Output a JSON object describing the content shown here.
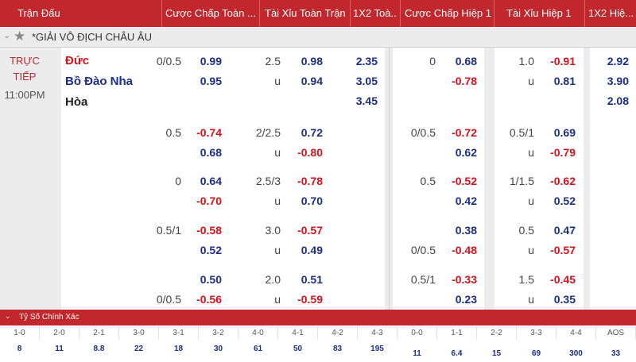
{
  "header": {
    "match": "Trận Đấu",
    "hcap_ft": "Cược Chấp Toàn ...",
    "ou_ft": "Tài Xỉu Toàn Trận",
    "x12_ft": "1X2 Toà...",
    "hcap_h1": "Cược Chấp Hiệp 1",
    "ou_h1": "Tài Xỉu Hiệp 1",
    "x12_h1": "1X2 Hiệ..."
  },
  "league": {
    "name": "*GIẢI VÔ ĐỊCH CHÂU ÂU",
    "star_icon": "star-icon"
  },
  "match": {
    "status_line1": "TRỰC",
    "status_line2": "TIẾP",
    "time": "11:00PM",
    "home": "Đức",
    "away": "Bồ Đào Nha",
    "draw": "Hòa"
  },
  "main_line": {
    "hcap_ft": {
      "line": "0/0.5",
      "home": "0.99",
      "away": "0.95"
    },
    "ou_ft": {
      "line": "2.5",
      "over": "0.98",
      "u_label": "u",
      "under": "0.94"
    },
    "x12_ft": {
      "home": "2.35",
      "away": "3.05",
      "draw": "3.45"
    },
    "hcap_h1": {
      "line": "0",
      "home": "0.68",
      "away": "-0.78"
    },
    "ou_h1": {
      "line": "1.0",
      "over": "-0.91",
      "u_label": "u",
      "under": "0.81"
    },
    "x12_h1": {
      "home": "2.92",
      "away": "3.90",
      "draw": "2.08"
    }
  },
  "alt_lines": [
    {
      "hcap_ft_line_top": "0.5",
      "hcap_ft_line_bot": "",
      "hcap_ft_top": "-0.74",
      "hcap_ft_bot": "0.68",
      "ou_ft_line": "2/2.5",
      "ou_ft_top": "0.72",
      "ou_ft_bot": "-0.80",
      "hcap_h1_line_top": "0/0.5",
      "hcap_h1_line_bot": "",
      "hcap_h1_top": "-0.72",
      "hcap_h1_bot": "0.62",
      "ou_h1_line": "0.5/1",
      "ou_h1_top": "0.69",
      "ou_h1_bot": "-0.79"
    },
    {
      "hcap_ft_line_top": "0",
      "hcap_ft_line_bot": "",
      "hcap_ft_top": "0.64",
      "hcap_ft_bot": "-0.70",
      "ou_ft_line": "2.5/3",
      "ou_ft_top": "-0.78",
      "ou_ft_bot": "0.70",
      "hcap_h1_line_top": "0.5",
      "hcap_h1_line_bot": "",
      "hcap_h1_top": "-0.52",
      "hcap_h1_bot": "0.42",
      "ou_h1_line": "1/1.5",
      "ou_h1_top": "-0.62",
      "ou_h1_bot": "0.52"
    },
    {
      "hcap_ft_line_top": "0.5/1",
      "hcap_ft_line_bot": "",
      "hcap_ft_top": "-0.58",
      "hcap_ft_bot": "0.52",
      "ou_ft_line": "3.0",
      "ou_ft_top": "-0.57",
      "ou_ft_bot": "0.49",
      "hcap_h1_line_top": "",
      "hcap_h1_line_bot": "0/0.5",
      "hcap_h1_top": "0.38",
      "hcap_h1_bot": "-0.48",
      "ou_h1_line": "0.5",
      "ou_h1_top": "0.47",
      "ou_h1_bot": "-0.57"
    },
    {
      "hcap_ft_line_top": "",
      "hcap_ft_line_bot": "0/0.5",
      "hcap_ft_top": "0.50",
      "hcap_ft_bot": "-0.56",
      "ou_ft_line": "2.0",
      "ou_ft_top": "0.51",
      "ou_ft_bot": "-0.59",
      "hcap_h1_line_top": "0.5/1",
      "hcap_h1_line_bot": "",
      "hcap_h1_top": "-0.33",
      "hcap_h1_bot": "0.23",
      "ou_h1_line": "1.5",
      "ou_h1_top": "-0.45",
      "ou_h1_bot": "0.35"
    }
  ],
  "correct_score": {
    "title": "Tỷ Số Chính Xác",
    "scores": [
      "1-0",
      "2-0",
      "2-1",
      "3-0",
      "3-1",
      "3-2",
      "4-0",
      "4-1",
      "4-2",
      "4-3",
      "0-0",
      "1-1",
      "2-2",
      "3-3",
      "4-4",
      "AOS"
    ],
    "odds": [
      "8",
      "11",
      "8.8",
      "22",
      "18",
      "30",
      "61",
      "50",
      "83",
      "195",
      "11",
      "6.4",
      "15",
      "69",
      "300",
      "33"
    ]
  },
  "colors": {
    "header_bg": "#c1272d",
    "odds_positive": "#1c2d8c",
    "odds_negative": "#d8111b",
    "panel_bg": "#ececec"
  }
}
